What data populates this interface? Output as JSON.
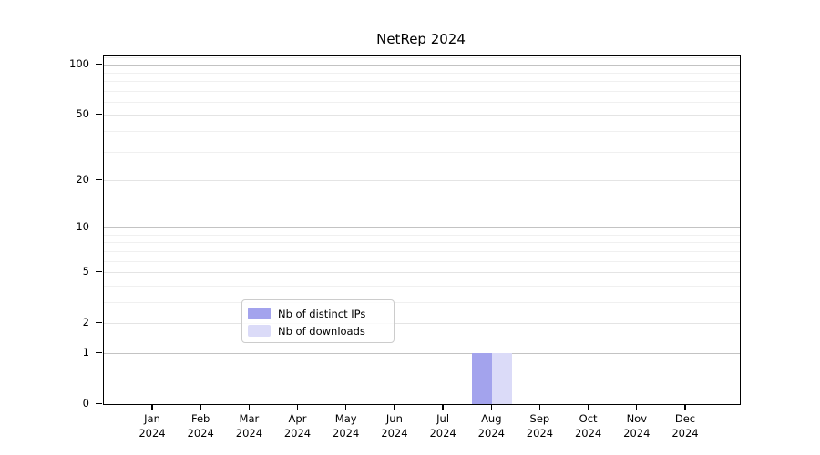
{
  "figure": {
    "title": "NetRep 2024",
    "background_color": "#ffffff"
  },
  "chart_data": {
    "type": "bar",
    "title": "NetRep 2024",
    "xlabel": "",
    "ylabel": "",
    "x_month_labels": [
      "Jan",
      "Feb",
      "Mar",
      "Apr",
      "May",
      "Jun",
      "Jul",
      "Aug",
      "Sep",
      "Oct",
      "Nov",
      "Dec"
    ],
    "x_year_label": "2024",
    "categories": [
      "Jan 2024",
      "Feb 2024",
      "Mar 2024",
      "Apr 2024",
      "May 2024",
      "Jun 2024",
      "Jul 2024",
      "Aug 2024",
      "Sep 2024",
      "Oct 2024",
      "Nov 2024",
      "Dec 2024"
    ],
    "series": [
      {
        "name": "Nb of distinct IPs",
        "color": "#a3a3ed",
        "values": [
          0,
          0,
          0,
          0,
          0,
          0,
          0,
          1,
          0,
          0,
          0,
          0
        ]
      },
      {
        "name": "Nb of downloads",
        "color": "#dbdbf8",
        "values": [
          0,
          0,
          0,
          0,
          0,
          0,
          0,
          1,
          0,
          0,
          0,
          0
        ]
      }
    ],
    "y_axis": {
      "scale": "symlog_ln_1_plus_v",
      "major_tick_values": [
        0,
        1,
        2,
        5,
        10,
        20,
        50,
        100
      ],
      "major_tick_labels": [
        "0",
        "1",
        "2",
        "5",
        "10",
        "20",
        "50",
        "100"
      ],
      "minor_tick_values": [
        3,
        4,
        6,
        7,
        8,
        9,
        30,
        40,
        60,
        70,
        80,
        90,
        110
      ],
      "ymin": 0,
      "ymax": 113.4
    },
    "grid": true,
    "legend": {
      "position": "lower-center",
      "entries": [
        "Nb of distinct IPs",
        "Nb of downloads"
      ]
    },
    "colors": {
      "spine": "#000000",
      "grid_power10": "#c3c3c3",
      "grid_major": "#e4e4e4",
      "grid_minor": "#f0f0f0",
      "legend_border": "#cccccc"
    }
  }
}
